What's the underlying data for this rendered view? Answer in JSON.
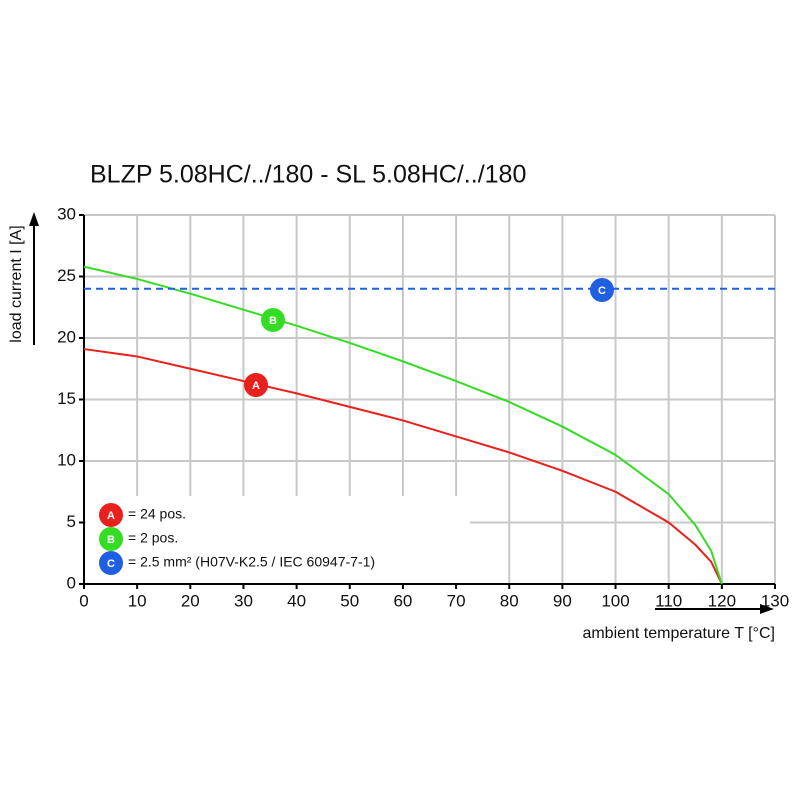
{
  "chart_data": {
    "type": "line",
    "title": "BLZP 5.08HC/../180 - SL 5.08HC/../180",
    "x_label": "ambient temperature T [°C]",
    "y_label": "load current I [A]",
    "xlim": [
      0,
      130
    ],
    "ylim": [
      0,
      30
    ],
    "xticks": [
      0,
      10,
      20,
      30,
      40,
      50,
      60,
      70,
      80,
      90,
      100,
      110,
      120,
      130
    ],
    "yticks": [
      0,
      5,
      10,
      15,
      20,
      25,
      30
    ],
    "grid": true,
    "series": [
      {
        "name": "A",
        "legend": "= 24 pos.",
        "color": "#e8211d",
        "x": [
          0,
          10,
          20,
          30,
          40,
          50,
          60,
          70,
          80,
          90,
          100,
          110,
          115,
          118,
          120
        ],
        "values": [
          19.1,
          18.5,
          17.5,
          16.5,
          15.5,
          14.4,
          13.3,
          12.0,
          10.7,
          9.2,
          7.5,
          5.0,
          3.2,
          1.8,
          0
        ]
      },
      {
        "name": "B",
        "legend": "= 2 pos.",
        "color": "#35dc24",
        "x": [
          0,
          10,
          20,
          30,
          40,
          50,
          60,
          70,
          80,
          90,
          100,
          110,
          115,
          118,
          120
        ],
        "values": [
          25.8,
          24.8,
          23.6,
          22.3,
          21.0,
          19.6,
          18.1,
          16.5,
          14.8,
          12.8,
          10.5,
          7.3,
          4.8,
          2.7,
          0
        ]
      },
      {
        "name": "C",
        "legend": "= 2.5 mm² (H07V-K2.5 / IEC 60947-7-1)",
        "color": "#1f5fe2",
        "dashed": true,
        "x": [
          0,
          130
        ],
        "values": [
          24,
          24
        ]
      }
    ]
  }
}
